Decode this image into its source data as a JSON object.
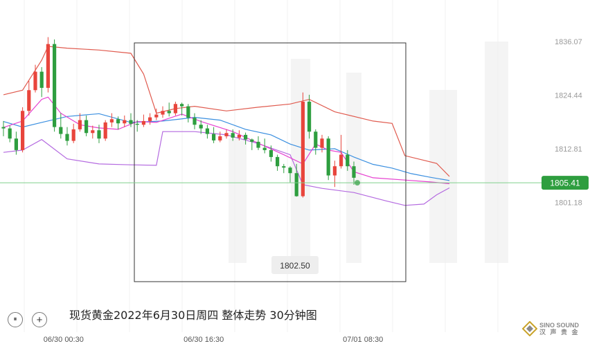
{
  "caption": "现货黄金2022年6月30日周四 整体走势 30分钟图",
  "brand": {
    "name": "SINO SOUND",
    "sub": "汉 声 贵 金"
  },
  "controls": {
    "pause_glyph": "⏸",
    "zoom_glyph": "+"
  },
  "colors": {
    "up": "#e8453c",
    "down": "#2e9e3f",
    "upper_band": "#e05a4e",
    "lower_band": "#b46ae0",
    "middle_band": "#3a8fe0",
    "ma": "#e63fd0",
    "current": "#2e9e3f"
  },
  "chart_data": {
    "type": "candlestick",
    "instrument": "现货黄金",
    "timeframe": "30分钟",
    "y_axis": {
      "min": 1796.5,
      "max": 1839.5,
      "ticks": [
        1836.07,
        1824.44,
        1812.81,
        1801.18
      ]
    },
    "x_axis": {
      "labels": [
        {
          "index": 9,
          "text": "06/30 00:30"
        },
        {
          "index": 31,
          "text": "06/30 16:30"
        },
        {
          "index": 56,
          "text": "07/01 08:30"
        }
      ]
    },
    "current_price": 1805.41,
    "annotation": {
      "text": "1802.50",
      "index": 37
    },
    "highlight_range": {
      "start_index": 16,
      "end_index": 50
    },
    "candles": [
      [
        1817.5,
        1817.2,
        1818.8,
        1815.5
      ],
      [
        1817.2,
        1815.0,
        1817.8,
        1814.2
      ],
      [
        1815.0,
        1812.5,
        1816.5,
        1811.5
      ],
      [
        1812.5,
        1821.0,
        1821.8,
        1812.0
      ],
      [
        1821.0,
        1825.5,
        1827.5,
        1820.0
      ],
      [
        1825.5,
        1829.5,
        1831.0,
        1825.0
      ],
      [
        1829.5,
        1826.0,
        1830.5,
        1824.0
      ],
      [
        1826.0,
        1835.5,
        1837.0,
        1825.0
      ],
      [
        1835.5,
        1817.5,
        1836.5,
        1816.5
      ],
      [
        1817.5,
        1816.0,
        1820.5,
        1815.0
      ],
      [
        1816.0,
        1814.5,
        1817.5,
        1813.5
      ],
      [
        1814.5,
        1817.0,
        1818.2,
        1814.0
      ],
      [
        1817.0,
        1819.0,
        1820.5,
        1816.5
      ],
      [
        1819.0,
        1816.2,
        1820.0,
        1815.5
      ],
      [
        1816.2,
        1816.8,
        1817.8,
        1815.0
      ],
      [
        1816.8,
        1815.0,
        1818.0,
        1814.0
      ],
      [
        1815.0,
        1818.5,
        1819.0,
        1814.5
      ],
      [
        1818.5,
        1819.2,
        1820.5,
        1817.5
      ],
      [
        1819.2,
        1818.3,
        1819.8,
        1817.0
      ],
      [
        1818.3,
        1819.0,
        1820.0,
        1817.5
      ],
      [
        1819.0,
        1818.2,
        1820.5,
        1817.5
      ],
      [
        1818.2,
        1818.0,
        1819.0,
        1816.5
      ],
      [
        1818.0,
        1818.8,
        1820.2,
        1817.5
      ],
      [
        1818.8,
        1819.6,
        1820.5,
        1818.0
      ],
      [
        1819.6,
        1820.2,
        1821.5,
        1819.0
      ],
      [
        1820.2,
        1821.0,
        1822.0,
        1819.5
      ],
      [
        1821.0,
        1820.5,
        1822.8,
        1819.8
      ],
      [
        1820.5,
        1822.5,
        1823.0,
        1820.0
      ],
      [
        1822.5,
        1822.0,
        1822.8,
        1820.0
      ],
      [
        1822.0,
        1819.5,
        1822.5,
        1818.5
      ],
      [
        1819.5,
        1818.0,
        1820.5,
        1817.0
      ],
      [
        1818.0,
        1817.2,
        1819.0,
        1816.0
      ],
      [
        1817.2,
        1816.0,
        1818.0,
        1815.0
      ],
      [
        1816.0,
        1814.6,
        1817.5,
        1814.0
      ],
      [
        1814.6,
        1815.5,
        1816.5,
        1814.2
      ],
      [
        1815.5,
        1816.2,
        1817.0,
        1815.0
      ],
      [
        1816.2,
        1815.2,
        1817.0,
        1814.5
      ],
      [
        1815.2,
        1815.8,
        1816.8,
        1814.6
      ],
      [
        1815.8,
        1814.8,
        1816.3,
        1813.7
      ],
      [
        1814.8,
        1814.3,
        1815.0,
        1812.5
      ],
      [
        1814.3,
        1813.0,
        1815.5,
        1812.5
      ],
      [
        1813.0,
        1812.5,
        1815.0,
        1811.8
      ],
      [
        1812.5,
        1811.0,
        1813.5,
        1810.0
      ],
      [
        1811.0,
        1809.0,
        1811.5,
        1808.0
      ],
      [
        1809.0,
        1808.7,
        1809.5,
        1807.5
      ],
      [
        1808.7,
        1807.5,
        1809.0,
        1805.5
      ],
      [
        1807.5,
        1802.5,
        1809.5,
        1802.4
      ],
      [
        1802.5,
        1823.0,
        1825.0,
        1802.2
      ],
      [
        1823.0,
        1816.5,
        1824.5,
        1815.0
      ],
      [
        1816.5,
        1813.0,
        1817.0,
        1811.5
      ],
      [
        1813.0,
        1815.0,
        1815.8,
        1812.0
      ],
      [
        1815.0,
        1807.0,
        1815.5,
        1806.0
      ],
      [
        1807.0,
        1809.0,
        1810.2,
        1804.5
      ],
      [
        1809.0,
        1811.5,
        1815.8,
        1808.5
      ],
      [
        1811.5,
        1809.0,
        1812.5,
        1808.0
      ],
      [
        1809.0,
        1806.5,
        1810.0,
        1805.0
      ]
    ],
    "indicators": {
      "upper_band": [
        [
          0,
          1824.5
        ],
        [
          3,
          1825.5
        ],
        [
          6,
          1832.0
        ],
        [
          7,
          1835.0
        ],
        [
          10,
          1834.6
        ],
        [
          15,
          1834.2
        ],
        [
          20,
          1833.5
        ],
        [
          22,
          1829.0
        ],
        [
          24,
          1820.5
        ],
        [
          27,
          1821.5
        ],
        [
          30,
          1822.0
        ],
        [
          35,
          1821.0
        ],
        [
          40,
          1821.8
        ],
        [
          45,
          1822.5
        ],
        [
          48,
          1823.5
        ],
        [
          52,
          1820.8
        ],
        [
          58,
          1818.8
        ],
        [
          61,
          1818.3
        ],
        [
          63,
          1811.3
        ],
        [
          68,
          1809.6
        ],
        [
          70,
          1806.8
        ]
      ],
      "middle_band": [
        [
          0,
          1818.7
        ],
        [
          3,
          1817.5
        ],
        [
          6,
          1818.5
        ],
        [
          10,
          1819.8
        ],
        [
          15,
          1820.4
        ],
        [
          20,
          1818.5
        ],
        [
          25,
          1818.8
        ],
        [
          30,
          1819.6
        ],
        [
          34,
          1819.0
        ],
        [
          38,
          1817.0
        ],
        [
          42,
          1815.8
        ],
        [
          45,
          1813.8
        ],
        [
          48,
          1812.5
        ],
        [
          52,
          1812.8
        ],
        [
          55,
          1811.0
        ],
        [
          58,
          1809.4
        ],
        [
          61,
          1808.6
        ],
        [
          64,
          1807.4
        ],
        [
          67,
          1806.6
        ],
        [
          70,
          1805.9
        ]
      ],
      "ma": [
        [
          0,
          1817.4
        ],
        [
          3,
          1818.8
        ],
        [
          6,
          1823.5
        ],
        [
          7,
          1824.0
        ],
        [
          9,
          1820.5
        ],
        [
          12,
          1818.0
        ],
        [
          15,
          1817.3
        ],
        [
          18,
          1817.0
        ],
        [
          21,
          1818.7
        ],
        [
          24,
          1818.5
        ],
        [
          28,
          1820.3
        ],
        [
          31,
          1818.7
        ],
        [
          36,
          1816.5
        ],
        [
          40,
          1814.0
        ],
        [
          44,
          1811.5
        ],
        [
          47,
          1809.5
        ],
        [
          49,
          1813.8
        ],
        [
          51,
          1812.5
        ],
        [
          53,
          1812.0
        ],
        [
          55,
          1807.8
        ],
        [
          58,
          1806.5
        ],
        [
          63,
          1806.0
        ],
        [
          67,
          1805.6
        ],
        [
          70,
          1805.2
        ]
      ],
      "lower_band": [
        [
          0,
          1812.0
        ],
        [
          3,
          1812.5
        ],
        [
          6,
          1814.8
        ],
        [
          10,
          1810.6
        ],
        [
          15,
          1809.5
        ],
        [
          20,
          1809.3
        ],
        [
          24,
          1809.2
        ],
        [
          25,
          1816.5
        ],
        [
          30,
          1816.5
        ],
        [
          35,
          1815.8
        ],
        [
          40,
          1813.9
        ],
        [
          45,
          1811.5
        ],
        [
          47,
          1805.0
        ],
        [
          50,
          1804.2
        ],
        [
          55,
          1803.3
        ],
        [
          60,
          1801.5
        ],
        [
          63,
          1800.5
        ],
        [
          66,
          1800.8
        ],
        [
          68,
          1802.8
        ],
        [
          70,
          1804.3
        ]
      ]
    }
  }
}
